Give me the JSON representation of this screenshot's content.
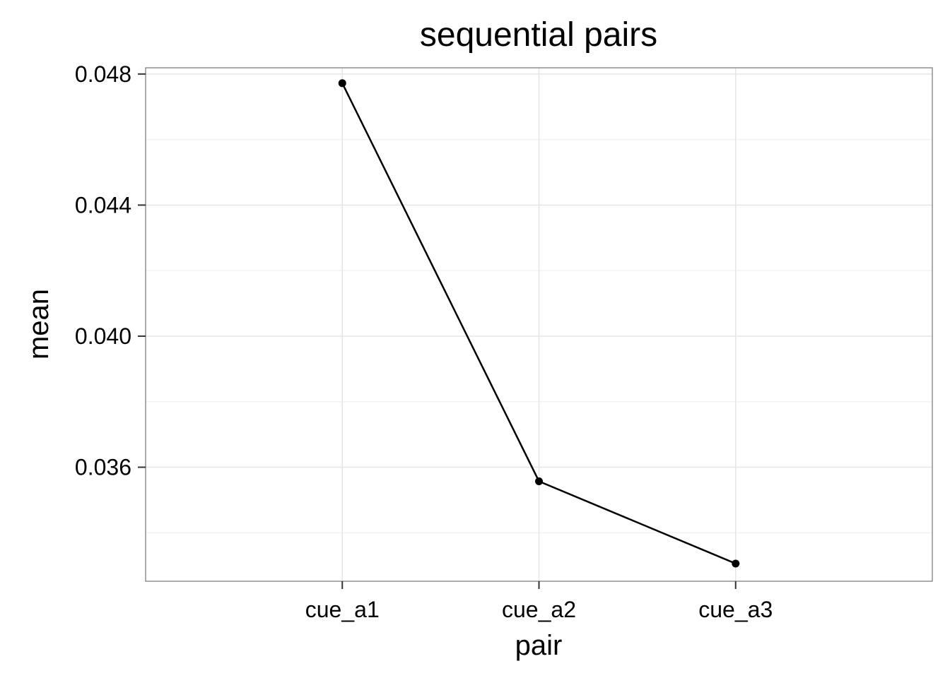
{
  "chart_data": {
    "type": "line",
    "title": "sequential pairs",
    "xlabel": "pair",
    "ylabel": "mean",
    "categories": [
      "cue_a1",
      "cue_a2",
      "cue_a3"
    ],
    "values": [
      0.04772,
      0.03557,
      0.03306
    ],
    "y_ticks": [
      "0.036",
      "0.040",
      "0.044",
      "0.048"
    ],
    "y_tick_values": [
      0.036,
      0.04,
      0.044,
      0.048
    ],
    "ylim": [
      0.03252,
      0.04819
    ],
    "grid": true,
    "legend": "none"
  }
}
